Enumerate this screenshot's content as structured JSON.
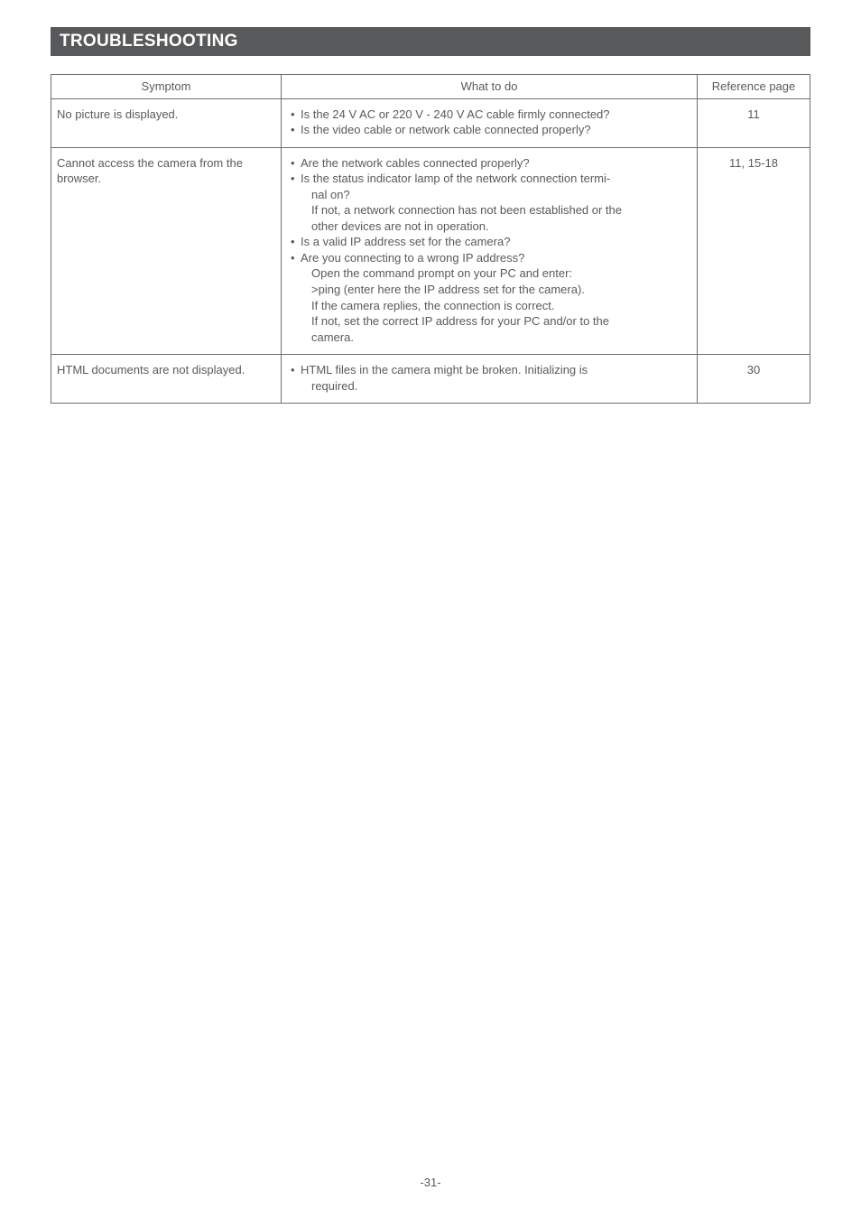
{
  "header": {
    "title": "TROUBLESHOOTING"
  },
  "table": {
    "columns": {
      "symptom": "Symptom",
      "what": "What to do",
      "ref": "Reference page"
    },
    "rows": [
      {
        "symptom": "No picture is displayed.",
        "what": {
          "b1": "Is the 24 V AC or 220 V - 240 V AC cable firmly connected?",
          "b2": "Is the video cable or network cable connected properly?"
        },
        "ref": "11"
      },
      {
        "symptom": "Cannot access the camera from the browser.",
        "what": {
          "b1": "Are the network cables connected properly?",
          "b2": "Is the status indicator lamp of the network connection termi-",
          "b2s1": "nal on?",
          "b2s2": "If not, a network connection has not been established or the",
          "b2s3": "other devices are not in operation.",
          "b3": "Is a valid IP address set for the camera?",
          "b4": "Are you connecting to a wrong IP address?",
          "b4s1": "Open the command prompt on your PC and enter:",
          "b4s2": ">ping (enter here the IP address set for the camera).",
          "b4s3": "If the camera replies, the connection is correct.",
          "b4s4": "If not, set the correct IP address for your PC and/or to the",
          "b4s5": "camera."
        },
        "ref": "11, 15-18"
      },
      {
        "symptom": "HTML documents are not displayed.",
        "what": {
          "b1": "HTML files in the camera might be broken. Initializing is",
          "b1s1": "required."
        },
        "ref": "30"
      }
    ]
  },
  "footer": {
    "page": "-31-"
  },
  "style": {
    "header_bg": "#58595b",
    "header_fg": "#ffffff",
    "border_color": "#6d6e71",
    "text_color": "#5a5a5a"
  }
}
